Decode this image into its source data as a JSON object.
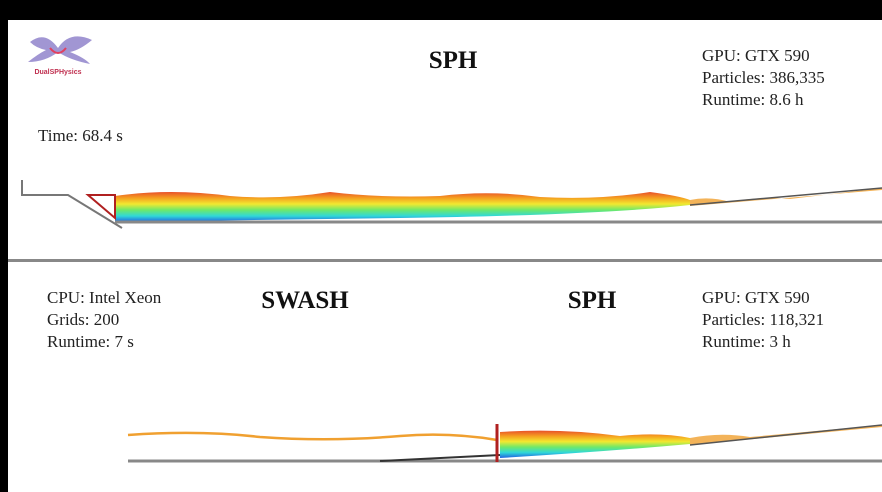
{
  "top_panel": {
    "logo": "DualSPHysics",
    "title": "SPH",
    "time": "Time: 68.4 s",
    "specs": [
      "GPU: GTX 590",
      "Particles: 386,335",
      "Runtime: 8.6 h"
    ]
  },
  "bottom_panel": {
    "left_specs": [
      "CPU: Intel Xeon",
      "Grids: 200",
      "Runtime: 7 s"
    ],
    "left_title": "SWASH",
    "right_title": "SPH",
    "right_specs": [
      "GPU: GTX 590",
      "Particles: 118,321",
      "Runtime: 3 h"
    ]
  }
}
